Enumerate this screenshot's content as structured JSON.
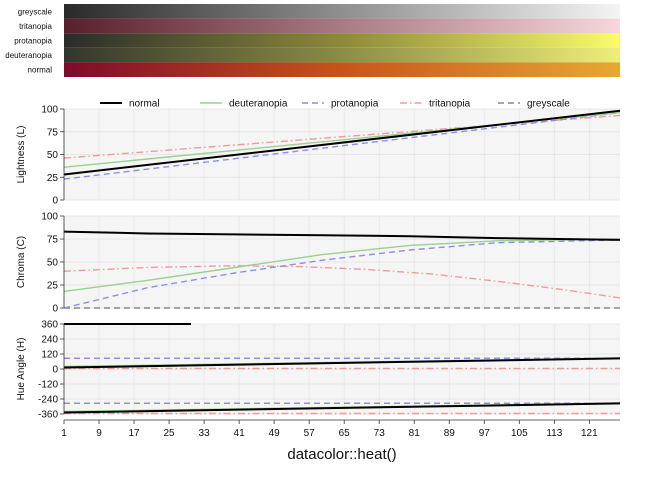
{
  "chart_data": {
    "type": "line",
    "title": "datacolor::heat()",
    "n_colors": 128,
    "x_ticks": [
      1,
      9,
      17,
      25,
      33,
      41,
      49,
      57,
      65,
      73,
      81,
      89,
      97,
      105,
      113,
      121
    ],
    "strips": [
      {
        "label": "greyscale",
        "start": "#2a2a2a",
        "end": "#f4f4f4"
      },
      {
        "label": "tritanopia",
        "start": "#5a1f2d",
        "end": "#f7d6dc"
      },
      {
        "label": "protanopia",
        "start": "#2b2b2b",
        "mid": "#8c8a3a",
        "end": "#fbfb6a"
      },
      {
        "label": "deuteranopia",
        "start": "#33362d",
        "mid": "#8c8c45",
        "end": "#eeee7a"
      },
      {
        "label": "normal",
        "start": "#7f0a2a",
        "mid": "#c8541c",
        "end": "#e6a833"
      }
    ],
    "legend": [
      {
        "name": "normal",
        "color": "#000000",
        "dash": "solid"
      },
      {
        "name": "deuteranopia",
        "color": "#9bd08e",
        "dash": "solid"
      },
      {
        "name": "protanopia",
        "color": "#8c8cf2",
        "dash": "dashed"
      },
      {
        "name": "tritanopia",
        "color": "#f29a9a",
        "dash": "dashdot"
      },
      {
        "name": "greyscale",
        "color": "#888888",
        "dash": "dashed"
      }
    ],
    "panels": [
      {
        "ylabel": "Lightness (L)",
        "ylim": [
          0,
          100
        ],
        "yticks": [
          0,
          25,
          50,
          75,
          100
        ],
        "series": [
          {
            "name": "normal",
            "x": [
              1,
              128
            ],
            "y": [
              28,
              98
            ]
          },
          {
            "name": "deuteranopia",
            "x": [
              1,
              128
            ],
            "y": [
              36,
              96
            ]
          },
          {
            "name": "protanopia",
            "x": [
              1,
              128
            ],
            "y": [
              23,
              96
            ]
          },
          {
            "name": "tritanopia",
            "x": [
              1,
              128
            ],
            "y": [
              46,
              93
            ]
          },
          {
            "name": "greyscale",
            "x": [
              1,
              128
            ],
            "y": [
              28,
              98
            ]
          }
        ]
      },
      {
        "ylabel": "Chroma (C)",
        "ylim": [
          0,
          100
        ],
        "yticks": [
          0,
          25,
          50,
          75,
          100
        ],
        "series": [
          {
            "name": "normal",
            "x": [
              1,
              20,
              40,
              60,
              80,
              100,
              128
            ],
            "y": [
              83,
              81,
              80,
              79,
              78,
              76,
              74
            ]
          },
          {
            "name": "deuteranopia",
            "x": [
              1,
              20,
              40,
              60,
              80,
              100,
              128
            ],
            "y": [
              18,
              30,
              44,
              58,
              68,
              73,
              75
            ]
          },
          {
            "name": "protanopia",
            "x": [
              1,
              20,
              40,
              60,
              80,
              100,
              128
            ],
            "y": [
              0,
              22,
              38,
              52,
              63,
              71,
              74
            ]
          },
          {
            "name": "tritanopia",
            "x": [
              1,
              20,
              40,
              55,
              70,
              85,
              100,
              115,
              128
            ],
            "y": [
              40,
              44,
              46,
              45,
              42,
              37,
              29,
              20,
              11
            ]
          },
          {
            "name": "greyscale",
            "x": [
              1,
              128
            ],
            "y": [
              0,
              0
            ]
          }
        ]
      },
      {
        "ylabel": "Hue Angle (H)",
        "ylim": [
          -360,
          360
        ],
        "yticks": [
          -360,
          -240,
          -120,
          0,
          120,
          240,
          360
        ],
        "yticklabels": [
          "-360",
          "-240",
          "-120",
          "0",
          "120",
          "240",
          "360"
        ],
        "series": [
          {
            "name": "normal",
            "x": [
              1,
              128
            ],
            "y": [
              12,
              85
            ]
          },
          {
            "name": "deuteranopia",
            "x": [
              1,
              128
            ],
            "y": [
              20,
              88
            ]
          },
          {
            "name": "protanopia",
            "x": [
              1,
              128
            ],
            "y": [
              86,
              86
            ]
          },
          {
            "name": "tritanopia",
            "x": [
              1,
              128
            ],
            "y": [
              4,
              4
            ]
          },
          {
            "name": "greyscale",
            "x": [
              1,
              128
            ],
            "y": [
              86,
              86
            ]
          },
          {
            "name": "normal",
            "x": [
              1,
              128
            ],
            "y": [
              -348,
              -275
            ]
          },
          {
            "name": "deuteranopia",
            "x": [
              1,
              128
            ],
            "y": [
              -340,
              -272
            ]
          },
          {
            "name": "protanopia",
            "x": [
              1,
              128
            ],
            "y": [
              -274,
              -274
            ]
          },
          {
            "name": "tritanopia",
            "x": [
              1,
              128
            ],
            "y": [
              -356,
              -356
            ]
          },
          {
            "name": "greyscale",
            "x": [
              1,
              128
            ],
            "y": [
              -274,
              -274
            ]
          },
          {
            "name": "normal",
            "x": [
              1,
              30
            ],
            "y": [
              360,
              360
            ]
          }
        ]
      }
    ]
  }
}
